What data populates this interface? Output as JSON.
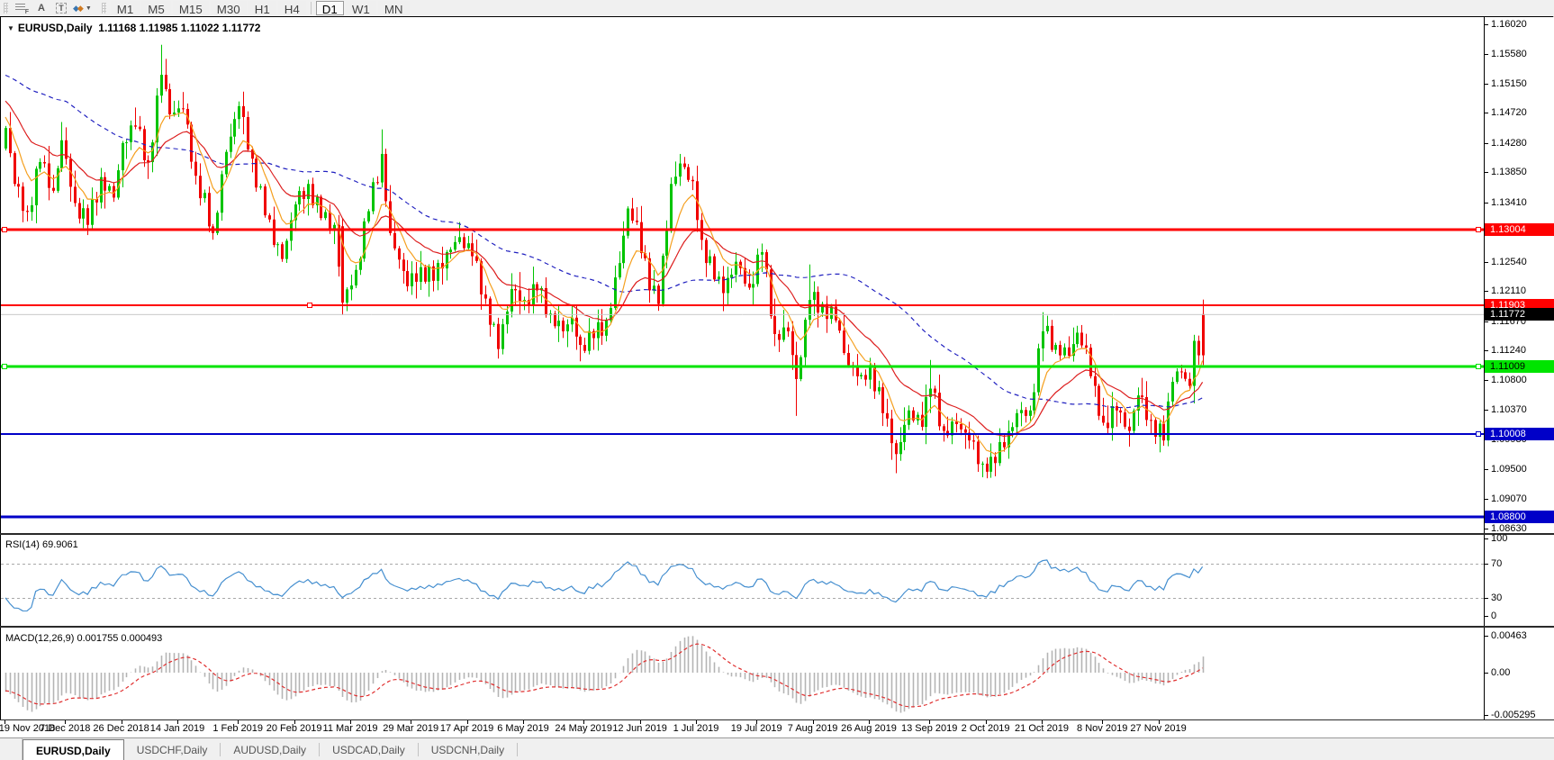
{
  "toolbar": {
    "icons": [
      "list-f-icon",
      "text-a-icon",
      "text-label-icon",
      "objects-icon"
    ],
    "timeframes": [
      "M1",
      "M5",
      "M15",
      "M30",
      "H1",
      "H4",
      "D1",
      "W1",
      "MN"
    ],
    "active_timeframe": "D1"
  },
  "chart": {
    "symbol_label": "EURUSD,Daily",
    "ohlc_text": "1.11168 1.11985 1.11022 1.11772",
    "rsi_label": "RSI(14) 69.9061",
    "macd_label": "MACD(12,26,9) 0.001755 0.000493"
  },
  "tabs": {
    "items": [
      {
        "label": "EURUSD,Daily",
        "active": true
      },
      {
        "label": "USDCHF,Daily",
        "active": false
      },
      {
        "label": "AUDUSD,Daily",
        "active": false
      },
      {
        "label": "USDCAD,Daily",
        "active": false
      },
      {
        "label": "USDCNH,Daily",
        "active": false
      }
    ]
  },
  "chart_data": {
    "type": "candlestick",
    "symbol": "EURUSD",
    "timeframe": "Daily",
    "last_bar": {
      "open": 1.11168,
      "high": 1.11985,
      "low": 1.11022,
      "close": 1.11772
    },
    "price_axis": {
      "range_top": 1.1602,
      "ticks": [
        1.1602,
        1.1558,
        1.1515,
        1.1472,
        1.1428,
        1.1385,
        1.1341,
        1.1254,
        1.1211,
        1.1167,
        1.1124,
        1.108,
        1.1037,
        1.0993,
        1.095,
        1.0907,
        1.0863
      ]
    },
    "horizontal_lines": [
      {
        "price": 1.13004,
        "label": "1.13004",
        "color": "#ff0000",
        "width": 3,
        "text_color": "#ffffff",
        "handles": [
          4,
          1641
        ]
      },
      {
        "price": 1.11903,
        "label": "1.11903",
        "color": "#ff0000",
        "width": 2,
        "text_color": "#ffffff",
        "handles": [
          343
        ]
      },
      {
        "price": 1.11009,
        "label": "1.11009",
        "color": "#00e400",
        "width": 3,
        "text_color": "#000000",
        "handles": [
          4,
          1641
        ]
      },
      {
        "price": 1.10008,
        "label": "1.10008",
        "color": "#0000c8",
        "width": 2,
        "text_color": "#ffffff",
        "handles": [
          1641
        ]
      },
      {
        "price": 1.088,
        "label": "1.08800",
        "color": "#0000c8",
        "width": 3,
        "text_color": "#ffffff",
        "handles": []
      }
    ],
    "current_price": {
      "price": 1.11772,
      "label": "1.11772",
      "line_color": "#c8c8c8",
      "label_bg": "#000000",
      "label_text": "#ffffff"
    },
    "bars_total": 278,
    "close_anchors": [
      [
        0,
        1.145
      ],
      [
        2,
        1.1368
      ],
      [
        5,
        1.1327
      ],
      [
        8,
        1.14
      ],
      [
        11,
        1.1358
      ],
      [
        13,
        1.1432
      ],
      [
        16,
        1.134
      ],
      [
        19,
        1.1308
      ],
      [
        22,
        1.1378
      ],
      [
        25,
        1.1348
      ],
      [
        27,
        1.1428
      ],
      [
        30,
        1.1452
      ],
      [
        33,
        1.14
      ],
      [
        36,
        1.1528
      ],
      [
        38,
        1.147
      ],
      [
        41,
        1.1478
      ],
      [
        44,
        1.138
      ],
      [
        48,
        1.1296
      ],
      [
        51,
        1.1415
      ],
      [
        54,
        1.1482
      ],
      [
        57,
        1.1405
      ],
      [
        60,
        1.1322
      ],
      [
        64,
        1.1258
      ],
      [
        67,
        1.1338
      ],
      [
        70,
        1.1368
      ],
      [
        73,
        1.1318
      ],
      [
        76,
        1.1308
      ],
      [
        78,
        1.1194
      ],
      [
        81,
        1.1242
      ],
      [
        84,
        1.1328
      ],
      [
        87,
        1.1412
      ],
      [
        89,
        1.1296
      ],
      [
        93,
        1.1218
      ],
      [
        96,
        1.1246
      ],
      [
        99,
        1.1226
      ],
      [
        102,
        1.1268
      ],
      [
        105,
        1.129
      ],
      [
        108,
        1.1262
      ],
      [
        111,
        1.12
      ],
      [
        114,
        1.1126
      ],
      [
        117,
        1.1214
      ],
      [
        120,
        1.1198
      ],
      [
        123,
        1.1212
      ],
      [
        126,
        1.1178
      ],
      [
        129,
        1.1152
      ],
      [
        131,
        1.1172
      ],
      [
        133,
        1.1132
      ],
      [
        136,
        1.1142
      ],
      [
        139,
        1.1168
      ],
      [
        142,
        1.1252
      ],
      [
        144,
        1.1332
      ],
      [
        146,
        1.1312
      ],
      [
        149,
        1.1212
      ],
      [
        151,
        1.1192
      ],
      [
        154,
        1.1368
      ],
      [
        156,
        1.1398
      ],
      [
        159,
        1.1372
      ],
      [
        161,
        1.1286
      ],
      [
        164,
        1.1228
      ],
      [
        166,
        1.1208
      ],
      [
        169,
        1.1254
      ],
      [
        172,
        1.1216
      ],
      [
        175,
        1.1268
      ],
      [
        178,
        1.1148
      ],
      [
        181,
        1.1152
      ],
      [
        183,
        1.1082
      ],
      [
        186,
        1.1198
      ],
      [
        189,
        1.1192
      ],
      [
        192,
        1.1168
      ],
      [
        195,
        1.1102
      ],
      [
        198,
        1.1088
      ],
      [
        200,
        1.1102
      ],
      [
        203,
        1.1032
      ],
      [
        205,
        1.0988
      ],
      [
        206,
        1.0972
      ],
      [
        209,
        1.1036
      ],
      [
        212,
        1.1012
      ],
      [
        214,
        1.1068
      ],
      [
        217,
        1.1006
      ],
      [
        220,
        1.1016
      ],
      [
        223,
        1.0992
      ],
      [
        226,
        1.0958
      ],
      [
        228,
        1.0968
      ],
      [
        231,
        1.0982
      ],
      [
        234,
        1.1032
      ],
      [
        237,
        1.1036
      ],
      [
        240,
        1.1152
      ],
      [
        243,
        1.1132
      ],
      [
        246,
        1.1116
      ],
      [
        248,
        1.115
      ],
      [
        250,
        1.1128
      ],
      [
        252,
        1.1072
      ],
      [
        254,
        1.1018
      ],
      [
        257,
        1.1036
      ],
      [
        260,
        1.1006
      ],
      [
        262,
        1.1058
      ],
      [
        265,
        1.1022
      ],
      [
        268,
        1.0992
      ],
      [
        270,
        1.1078
      ],
      [
        272,
        1.1092
      ],
      [
        274,
        1.1072
      ],
      [
        275,
        1.1138
      ],
      [
        276,
        1.11168
      ],
      [
        277,
        1.11772
      ]
    ],
    "special_bars": {
      "36": {
        "high": 1.1572
      },
      "78": {
        "open": 1.1306,
        "high": 1.1318,
        "low": 1.1176,
        "close": 1.1194
      },
      "87": {
        "high": 1.1448
      },
      "114": {
        "low": 1.1112
      },
      "133": {
        "low": 1.1108
      },
      "151": {
        "low": 1.1182
      },
      "156": {
        "high": 1.1412
      },
      "183": {
        "low": 1.1028
      },
      "186": {
        "high": 1.125
      },
      "206": {
        "low": 1.0944
      },
      "214": {
        "high": 1.111
      },
      "226": {
        "low": 1.0938
      },
      "240": {
        "high": 1.118
      },
      "277": {
        "open": 1.11168,
        "high": 1.11985,
        "low": 1.11022,
        "close": 1.11772,
        "red": true
      }
    },
    "moving_averages": [
      {
        "name": "fast",
        "period": 8,
        "color": "#f5a020",
        "style": "solid"
      },
      {
        "name": "medium",
        "period": 21,
        "color": "#dd2020",
        "style": "solid"
      },
      {
        "name": "slow",
        "period": 55,
        "color": "#2222c0",
        "style": "dashed"
      }
    ],
    "indicators": {
      "rsi": {
        "name": "RSI",
        "period": 14,
        "value": 69.9061,
        "levels": [
          70,
          30
        ],
        "axis_ticks": [
          "100",
          "70",
          "30",
          "0"
        ],
        "color": "#4790d0"
      },
      "macd": {
        "name": "MACD",
        "fast": 12,
        "slow": 26,
        "signal": 9,
        "value_main": 0.001755,
        "value_signal": 0.000493,
        "axis_ticks": [
          "0.00463",
          "0.00",
          "-0.005295"
        ],
        "hist_color": "#b4b4b4",
        "signal_color": "#e03030"
      }
    },
    "x_axis_dates": [
      {
        "bar": 0,
        "label": "19 Nov 2018"
      },
      {
        "bar": 14,
        "label": "7 Dec 2018"
      },
      {
        "bar": 27,
        "label": "26 Dec 2018"
      },
      {
        "bar": 40,
        "label": "14 Jan 2019"
      },
      {
        "bar": 54,
        "label": "1 Feb 2019"
      },
      {
        "bar": 67,
        "label": "20 Feb 2019"
      },
      {
        "bar": 80,
        "label": "11 Mar 2019"
      },
      {
        "bar": 94,
        "label": "29 Mar 2019"
      },
      {
        "bar": 107,
        "label": "17 Apr 2019"
      },
      {
        "bar": 120,
        "label": "6 May 2019"
      },
      {
        "bar": 134,
        "label": "24 May 2019"
      },
      {
        "bar": 147,
        "label": "12 Jun 2019"
      },
      {
        "bar": 160,
        "label": "1 Jul 2019"
      },
      {
        "bar": 174,
        "label": "19 Jul 2019"
      },
      {
        "bar": 187,
        "label": "7 Aug 2019"
      },
      {
        "bar": 200,
        "label": "26 Aug 2019"
      },
      {
        "bar": 214,
        "label": "13 Sep 2019"
      },
      {
        "bar": 227,
        "label": "2 Oct 2019"
      },
      {
        "bar": 240,
        "label": "21 Oct 2019"
      },
      {
        "bar": 254,
        "label": "8 Nov 2019"
      },
      {
        "bar": 267,
        "label": "27 Nov 2019"
      }
    ],
    "colors": {
      "bull": "#00c400",
      "bear": "#f00000",
      "background": "#ffffff",
      "frame": "#000000"
    }
  }
}
